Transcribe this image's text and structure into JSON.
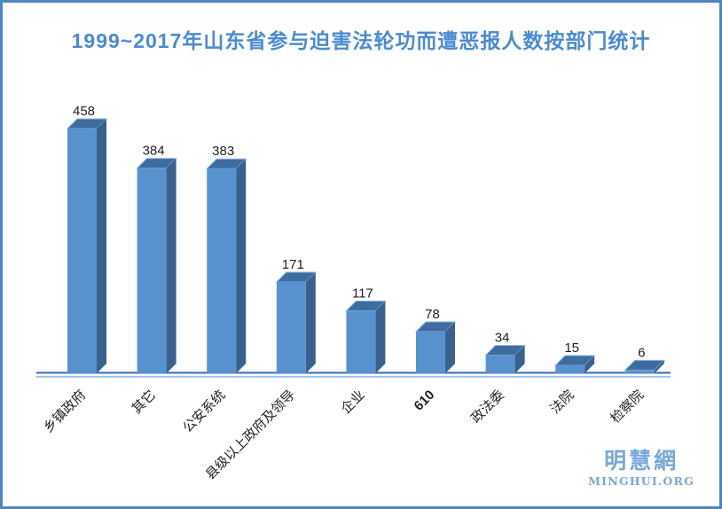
{
  "chart_data": {
    "type": "bar",
    "style": "3d-column",
    "title": "1999~2017年山东省参与迫害法轮功而遭恶报人数按部门统计",
    "categories": [
      "乡镇政府",
      "其它",
      "公安系统",
      "县级以上政府及领导",
      "企业",
      "610",
      "政法委",
      "法院",
      "检察院"
    ],
    "values": [
      458,
      384,
      383,
      171,
      117,
      78,
      34,
      15,
      6
    ],
    "bold_categories": [
      "610"
    ],
    "value_labels": true,
    "category_label_rotation_deg": 45,
    "xlabel": "",
    "ylabel": "",
    "y_axis_visible": false,
    "grid": false,
    "legend": "none",
    "colors": {
      "title": "#4A8BD3",
      "bar_front": "#5892CE",
      "bar_top": "#3F6C9E",
      "bar_side": "#38618E",
      "bar_top_edge": "#8AB5E0",
      "axis_line_dark": "#4679BC",
      "axis_line_light": "#A3C1E5",
      "label_text": "#1F1F1F",
      "frame_border": "#4E86C0"
    }
  },
  "watermark": {
    "cn": "明慧網",
    "en": "MINGHUI.ORG",
    "color": "#7BA7D8"
  }
}
